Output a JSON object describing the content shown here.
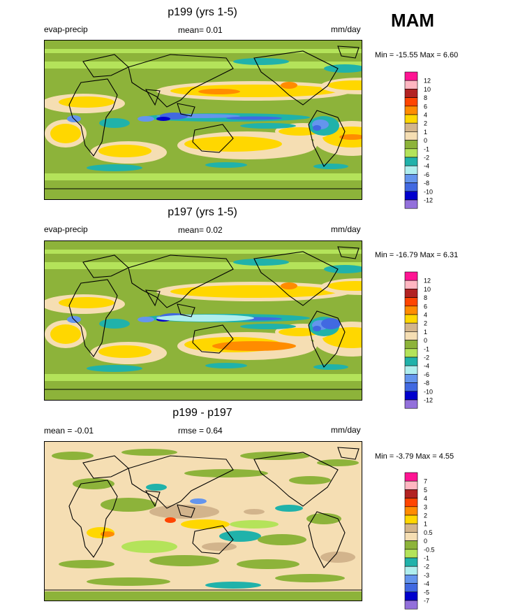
{
  "season": "MAM",
  "colors": {
    "levels": [
      "#ff1493",
      "#ffb6c1",
      "#b22222",
      "#ff4500",
      "#ff8c00",
      "#ffd700",
      "#d2b48c",
      "#f5deb3",
      "#8db33a",
      "#b4e35a",
      "#20b2aa",
      "#afeeee",
      "#6495ed",
      "#4169e1",
      "#0000cd",
      "#9370db"
    ]
  },
  "panels": [
    {
      "title": "p199 (yrs 1-5)",
      "left_label": "evap-precip",
      "center_label": "mean=   0.01",
      "units": "mm/day",
      "minmax": "Min = -15.55 Max =   6.60",
      "colorbar_labels": [
        "12",
        "10",
        "8",
        "6",
        "4",
        "2",
        "1",
        "0",
        "-1",
        "-2",
        "-4",
        "-6",
        "-8",
        "-10",
        "-12"
      ]
    },
    {
      "title": "p197 (yrs 1-5)",
      "left_label": "evap-precip",
      "center_label": "mean=   0.02",
      "units": "mm/day",
      "minmax": "Min = -16.79 Max =   6.31",
      "colorbar_labels": [
        "12",
        "10",
        "8",
        "6",
        "4",
        "2",
        "1",
        "0",
        "-1",
        "-2",
        "-4",
        "-6",
        "-8",
        "-10",
        "-12"
      ]
    },
    {
      "title": "p199 - p197",
      "left_label": "mean =  -0.01",
      "center_label": "rmse =   0.64",
      "units": "mm/day",
      "minmax": "Min =  -3.79 Max =   4.55",
      "colorbar_labels": [
        "7",
        "5",
        "4",
        "3",
        "2",
        "1",
        "0.5",
        "0",
        "-0.5",
        "-1",
        "-2",
        "-3",
        "-4",
        "-5",
        "-7"
      ]
    }
  ],
  "chart_data": [
    {
      "type": "heatmap",
      "title": "p199 (yrs 1-5)",
      "variable": "evap-precip",
      "units": "mm/day",
      "mean": 0.01,
      "min": -15.55,
      "max": 6.6,
      "levels": [
        12,
        10,
        8,
        6,
        4,
        2,
        1,
        0,
        -1,
        -2,
        -4,
        -6,
        -8,
        -10,
        -12
      ]
    },
    {
      "type": "heatmap",
      "title": "p197 (yrs 1-5)",
      "variable": "evap-precip",
      "units": "mm/day",
      "mean": 0.02,
      "min": -16.79,
      "max": 6.31,
      "levels": [
        12,
        10,
        8,
        6,
        4,
        2,
        1,
        0,
        -1,
        -2,
        -4,
        -6,
        -8,
        -10,
        -12
      ]
    },
    {
      "type": "heatmap",
      "title": "p199 - p197",
      "units": "mm/day",
      "mean": -0.01,
      "rmse": 0.64,
      "min": -3.79,
      "max": 4.55,
      "levels": [
        7,
        5,
        4,
        3,
        2,
        1,
        0.5,
        0,
        -0.5,
        -1,
        -2,
        -3,
        -4,
        -5,
        -7
      ]
    }
  ]
}
